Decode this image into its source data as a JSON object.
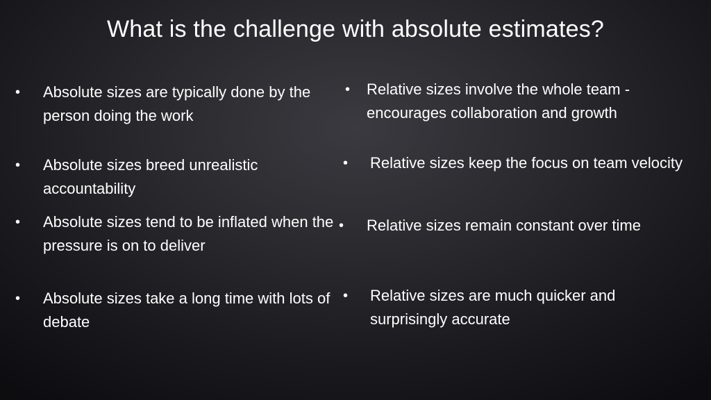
{
  "slide": {
    "title": "What is the challenge with absolute estimates?",
    "bullet_symbol": "•",
    "left_column": [
      {
        "text": "Absolute sizes are typically done by the person doing the work"
      },
      {
        "text": "Absolute sizes breed unrealistic accountability"
      },
      {
        "text": "Absolute sizes tend to be inflated when the pressure is on to deliver"
      },
      {
        "text": "Absolute sizes take a long time with lots of debate"
      }
    ],
    "right_column": [
      {
        "text": "Relative sizes involve the whole team - encourages collaboration and growth"
      },
      {
        "text": "Relative sizes keep the focus on team velocity"
      },
      {
        "text": "Relative sizes remain constant over time"
      },
      {
        "text": "Relative sizes are much quicker and surprisingly accurate"
      }
    ]
  },
  "colors": {
    "text": "#ffffff",
    "background_center": "#3b3a40",
    "background_edge": "#0d0c0f"
  }
}
